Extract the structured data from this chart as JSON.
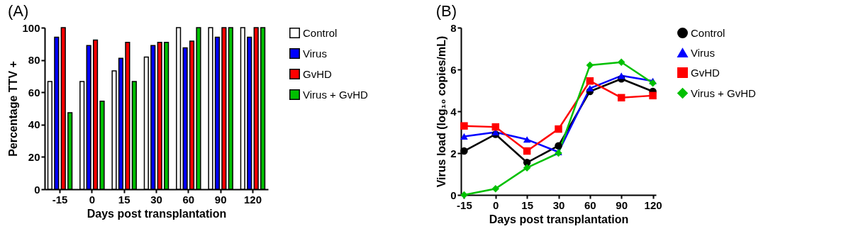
{
  "chart_data": [
    {
      "type": "bar",
      "title": "(A)",
      "xlabel": "Days post transplantation",
      "ylabel": "Percentage TTV +",
      "categories": [
        "-15",
        "0",
        "15",
        "30",
        "60",
        "90",
        "120"
      ],
      "ylim": [
        0,
        100
      ],
      "yticks": [
        0,
        20,
        40,
        60,
        80,
        100
      ],
      "legend": "right",
      "series": [
        {
          "name": "Control",
          "color": "#ffffff",
          "values": [
            66.7,
            66.7,
            73.3,
            81.8,
            100,
            100,
            100
          ]
        },
        {
          "name": "Virus",
          "color": "#0000ff",
          "values": [
            94.1,
            88.9,
            81,
            88.9,
            87.5,
            94.1,
            94.1
          ]
        },
        {
          "name": "GvHD",
          "color": "#ff0000",
          "values": [
            100,
            92.3,
            90.9,
            90.9,
            91.7,
            100,
            100
          ]
        },
        {
          "name": "Virus + GvHD",
          "color": "#00c000",
          "values": [
            47.4,
            54.5,
            66.7,
            90.9,
            100,
            100,
            100
          ]
        }
      ]
    },
    {
      "type": "line",
      "title": "(B)",
      "xlabel": "Days post transplantation",
      "ylabel": "Virus load (log₁₀ copies/mL)",
      "categories": [
        "-15",
        "0",
        "15",
        "30",
        "60",
        "90",
        "120"
      ],
      "ylim": [
        0,
        8
      ],
      "yticks": [
        0,
        2,
        4,
        6,
        8
      ],
      "legend": "right",
      "series": [
        {
          "name": "Control",
          "color": "#000000",
          "marker": "circle",
          "values": [
            2.1,
            2.9,
            1.55,
            2.35,
            4.95,
            5.55,
            4.95
          ]
        },
        {
          "name": "Virus",
          "color": "#0000ff",
          "marker": "triangle",
          "values": [
            2.8,
            3.0,
            2.65,
            2.05,
            5.1,
            5.7,
            5.45
          ]
        },
        {
          "name": "GvHD",
          "color": "#ff0000",
          "marker": "square",
          "values": [
            3.3,
            3.25,
            2.1,
            3.15,
            5.45,
            4.65,
            4.75
          ]
        },
        {
          "name": "Virus + GvHD",
          "color": "#00c000",
          "marker": "diamond",
          "values": [
            0.0,
            0.3,
            1.3,
            2.0,
            6.2,
            6.35,
            5.35
          ]
        }
      ]
    }
  ]
}
